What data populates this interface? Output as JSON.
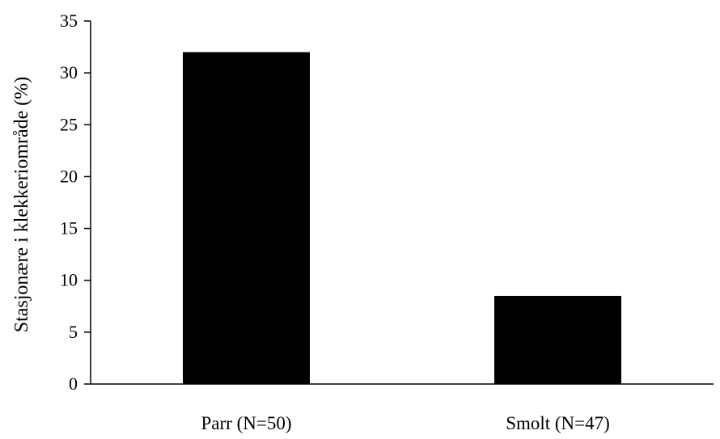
{
  "chart_data": {
    "type": "bar",
    "title": "",
    "xlabel": "",
    "ylabel": "Stasjonære i klekkeriområde  (%)",
    "categories": [
      "Parr (N=50)",
      "Smolt (N=47)"
    ],
    "values": [
      32,
      8.5
    ],
    "ylim": [
      0,
      35
    ],
    "yticks": [
      0,
      5,
      10,
      15,
      20,
      25,
      30,
      35
    ],
    "bar_color": "#000000",
    "grid": false,
    "legend": "none"
  }
}
